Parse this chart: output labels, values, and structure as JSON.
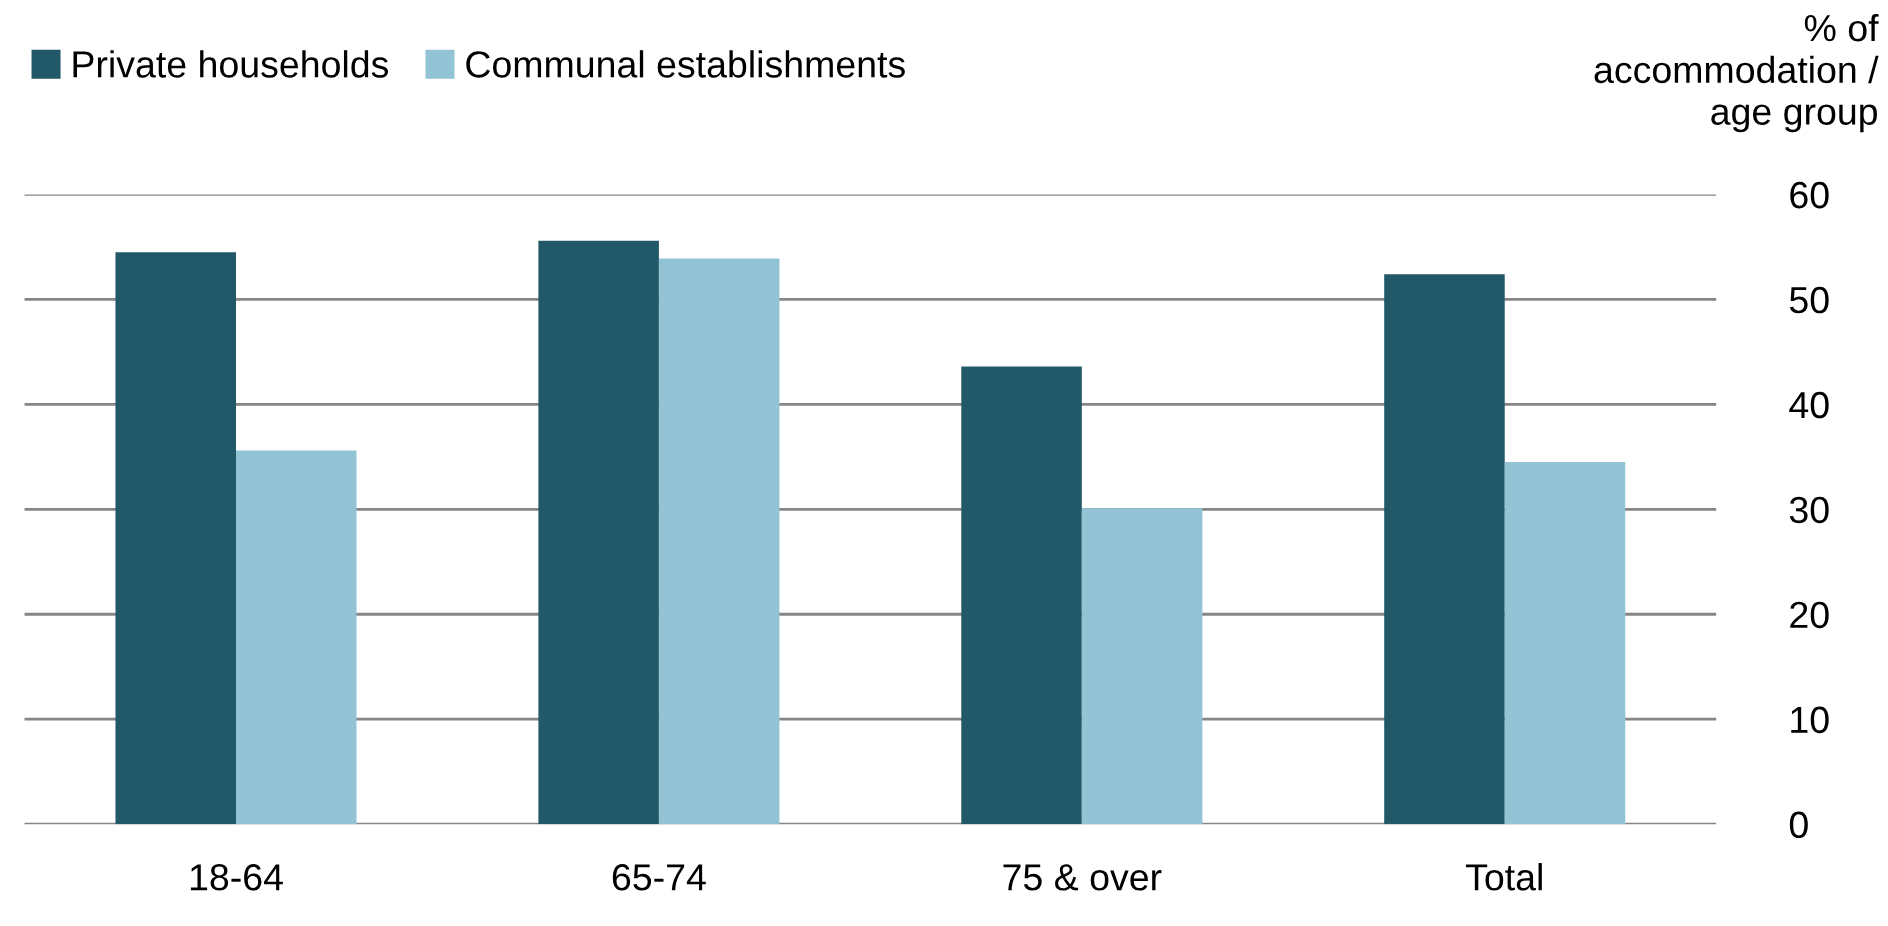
{
  "chart_data": {
    "type": "bar",
    "ylabel": "% of\naccommodation /\nage group",
    "categories": [
      "18-64",
      "65-74",
      "75 & over",
      "Total"
    ],
    "series": [
      {
        "name": "Private households",
        "color": "#215968",
        "values": [
          54.5,
          55.6,
          43.6,
          52.4
        ]
      },
      {
        "name": "Communal establishments",
        "color": "#93c4d6",
        "values": [
          35.6,
          53.9,
          30.1,
          34.5
        ]
      }
    ],
    "ylim": [
      0,
      60
    ],
    "yticks": [
      0,
      10,
      20,
      30,
      40,
      50,
      60
    ],
    "grid": "y",
    "legend": "top left"
  }
}
